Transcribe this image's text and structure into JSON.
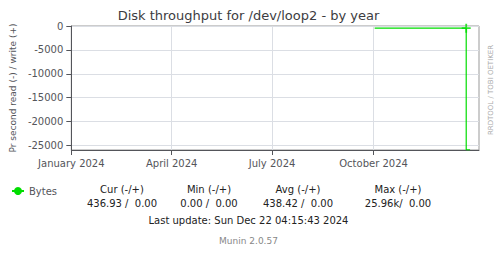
{
  "chart_data": {
    "type": "line",
    "title": "Disk throughput for /dev/loop2 - by year",
    "ylabel": "Pr second read (-) / write (+)",
    "xlim": [
      1704067200,
      1736000000
    ],
    "xticks": [
      {
        "value": 1704067200,
        "label": "January 2024"
      },
      {
        "value": 1711929600,
        "label": "April 2024"
      },
      {
        "value": 1719792000,
        "label": "July 2024"
      },
      {
        "value": 1727740800,
        "label": "October 2024"
      }
    ],
    "ylim": [
      -26000,
      20
    ],
    "yticks": [
      0,
      -5000,
      -10000,
      -15000,
      -20000,
      -25000
    ],
    "grid": true,
    "legend": "lower left",
    "series": [
      {
        "name": "Bytes",
        "color": "#00dd00",
        "x": [
          1727827200,
          1734998400,
          1734998400,
          1735300000
        ],
        "values": [
          -438.42,
          -438.42,
          -25960,
          -25960
        ]
      },
      {
        "type": "scatter",
        "marker": "cross",
        "color": "#00dd00",
        "x": [
          1734998400
        ],
        "values": [
          -438.42
        ]
      }
    ],
    "annotations": {
      "watermark": "RRDTOOL / TOBI OETIKER",
      "stats": [
        [
          "Cur (-/+)",
          "436.93 /  0.00"
        ],
        [
          "Min (-/+)",
          "0.00 /  0.00"
        ],
        [
          "Avg (-/+)",
          "438.42 /  0.00"
        ],
        [
          "Max (-/+)",
          "25.96k/  0.00"
        ]
      ],
      "last_update": "Last update: Sun Dec 22 04:15:43 2024",
      "footer": "Munin 2.0.57"
    }
  }
}
